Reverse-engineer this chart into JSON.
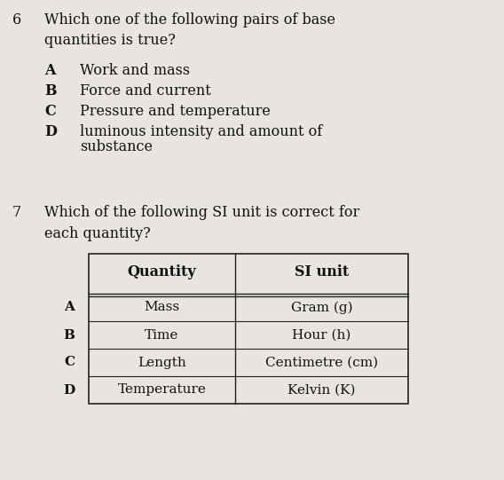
{
  "bg_color": "#e8e4e0",
  "q6_number": "6",
  "q6_question": "Which one of the following pairs of base\nquantities is true?",
  "q6_options": [
    [
      "A",
      "Work and mass"
    ],
    [
      "B",
      "Force and current"
    ],
    [
      "C",
      "Pressure and temperature"
    ],
    [
      "D",
      "luminous intensity and amount of\nsubstance"
    ]
  ],
  "q7_number": "7",
  "q7_question": "Which of the following SI unit is correct for\neach quantity?",
  "table_header": [
    "Quantity",
    "SI unit"
  ],
  "table_rows": [
    [
      "A",
      "Mass",
      "Gram (g)"
    ],
    [
      "B",
      "Time",
      "Hour (h)"
    ],
    [
      "C",
      "Length",
      "Centimetre (cm)"
    ],
    [
      "D",
      "Temperature",
      "Kelvin (K)"
    ]
  ],
  "font_size_question": 11.5,
  "font_size_number": 11.5,
  "font_size_option": 11.5,
  "font_size_table": 11,
  "text_color": "#111111"
}
